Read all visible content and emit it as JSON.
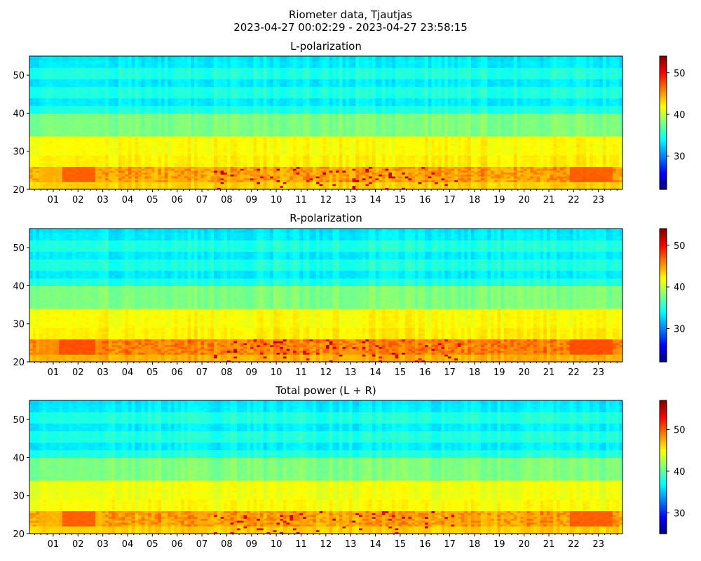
{
  "figure": {
    "title_line1": "Riometer data, Tjautjas",
    "title_line2": "2023-04-27 00:02:29 - 2023-04-27 23:58:15"
  },
  "chart_data": [
    {
      "type": "heatmap",
      "title": "L-polarization",
      "colormap": "jet",
      "x_tick_labels": [
        "01",
        "02",
        "03",
        "04",
        "05",
        "06",
        "07",
        "08",
        "09",
        "10",
        "11",
        "12",
        "13",
        "14",
        "15",
        "16",
        "17",
        "18",
        "19",
        "20",
        "21",
        "22",
        "23"
      ],
      "x_range_hours": [
        0.04,
        23.97
      ],
      "y_ticks": [
        20,
        30,
        40,
        50
      ],
      "ylim": [
        20,
        55
      ],
      "colorbar_ticks": [
        30,
        40,
        50
      ],
      "colorbar_range": [
        22,
        54
      ],
      "features": {
        "quiet_band_20_26": 44,
        "bright_band_22_26_night": 47,
        "mid_30_34": 42,
        "mid_36_40": 38,
        "upper_40_55": 35,
        "dark_stripes_at": [
          43,
          48,
          53
        ],
        "bright_blobs_hours": [
          [
            1.4,
            2.7
          ],
          [
            21.9,
            23.6
          ]
        ],
        "quiet_columns_hours": [
          [
            0.5,
            2.8
          ]
        ],
        "disturbance_hours": [
          [
            7.5,
            17.5
          ]
        ]
      }
    },
    {
      "type": "heatmap",
      "title": "R-polarization",
      "colormap": "jet",
      "x_tick_labels": [
        "01",
        "02",
        "03",
        "04",
        "05",
        "06",
        "07",
        "08",
        "09",
        "10",
        "11",
        "12",
        "13",
        "14",
        "15",
        "16",
        "17",
        "18",
        "19",
        "20",
        "21",
        "22",
        "23"
      ],
      "x_range_hours": [
        0.04,
        23.97
      ],
      "y_ticks": [
        20,
        30,
        40,
        50
      ],
      "ylim": [
        20,
        55
      ],
      "colorbar_ticks": [
        30,
        40,
        50
      ],
      "colorbar_range": [
        22,
        54
      ],
      "features": {
        "quiet_band_20_26": 45,
        "bright_band_22_26_night": 47.5,
        "mid_30_34": 42,
        "mid_36_40": 38,
        "upper_40_55": 35,
        "dark_stripes_at": [
          43,
          48,
          53
        ],
        "bright_blobs_hours": [
          [
            1.3,
            2.7
          ],
          [
            21.9,
            23.6
          ]
        ],
        "quiet_columns_hours": [
          [
            0.5,
            2.8
          ]
        ],
        "disturbance_hours": [
          [
            7.5,
            17.5
          ]
        ]
      }
    },
    {
      "type": "heatmap",
      "title": "Total power (L + R)",
      "colormap": "jet",
      "x_tick_labels": [
        "01",
        "02",
        "03",
        "04",
        "05",
        "06",
        "07",
        "08",
        "09",
        "10",
        "11",
        "12",
        "13",
        "14",
        "15",
        "16",
        "17",
        "18",
        "19",
        "20",
        "21",
        "22",
        "23"
      ],
      "x_range_hours": [
        0.04,
        23.97
      ],
      "y_ticks": [
        20,
        30,
        40,
        50
      ],
      "ylim": [
        20,
        55
      ],
      "colorbar_ticks": [
        30,
        40,
        50
      ],
      "colorbar_range": [
        25,
        57
      ],
      "features": {
        "quiet_band_20_26": 47,
        "bright_band_22_26_night": 50,
        "mid_30_34": 44.5,
        "mid_36_40": 41,
        "upper_40_55": 38,
        "dark_stripes_at": [
          43,
          48,
          53
        ],
        "bright_blobs_hours": [
          [
            1.4,
            2.7
          ],
          [
            21.9,
            23.6
          ]
        ],
        "quiet_columns_hours": [
          [
            0.5,
            2.8
          ]
        ],
        "disturbance_hours": [
          [
            7.5,
            17.5
          ]
        ]
      }
    }
  ]
}
